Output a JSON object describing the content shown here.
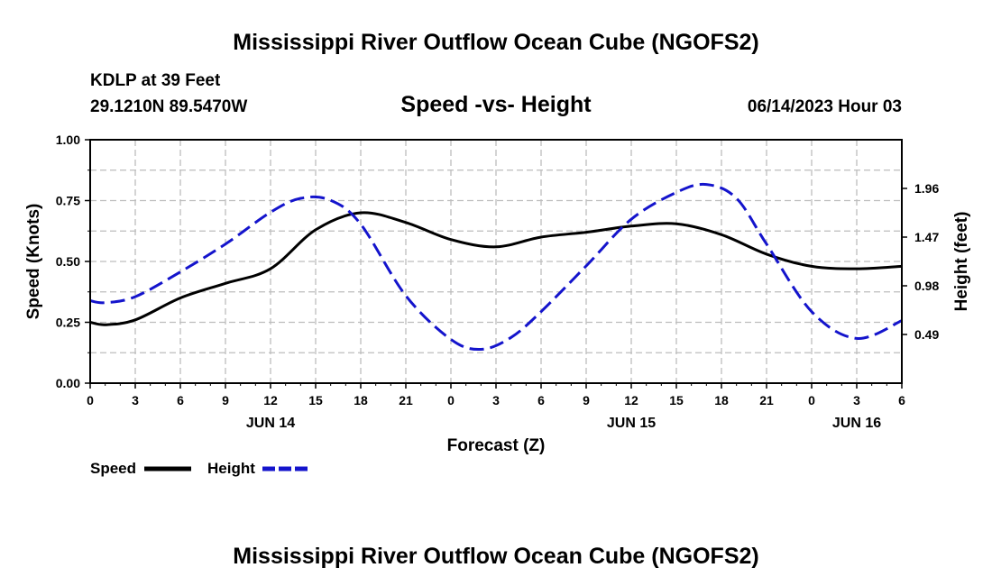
{
  "header": {
    "main_title": "Mississippi River Outflow Ocean Cube (NGOFS2)",
    "station": "KDLP at 39 Feet",
    "location": "29.1210N  89.5470W",
    "subtitle": "Speed -vs- Height",
    "datetime": "06/14/2023 Hour 03"
  },
  "footer": {
    "title": "Mississippi River Outflow Ocean Cube (NGOFS2)"
  },
  "chart_data": {
    "type": "line",
    "title": "Speed -vs- Height",
    "xlabel": "Forecast (Z)",
    "ylabel": "Speed (Knots)",
    "y2label": "Height (feet)",
    "xlim": [
      0,
      54
    ],
    "ylim": [
      0,
      1
    ],
    "y2lim": [
      0,
      2.45
    ],
    "grid": true,
    "x_ticks": [
      {
        "x": 0,
        "label": "0"
      },
      {
        "x": 3,
        "label": "3"
      },
      {
        "x": 6,
        "label": "6"
      },
      {
        "x": 9,
        "label": "9"
      },
      {
        "x": 12,
        "label": "12"
      },
      {
        "x": 15,
        "label": "15"
      },
      {
        "x": 18,
        "label": "18"
      },
      {
        "x": 21,
        "label": "21"
      },
      {
        "x": 24,
        "label": "0"
      },
      {
        "x": 27,
        "label": "3"
      },
      {
        "x": 30,
        "label": "6"
      },
      {
        "x": 33,
        "label": "9"
      },
      {
        "x": 36,
        "label": "12"
      },
      {
        "x": 39,
        "label": "15"
      },
      {
        "x": 42,
        "label": "18"
      },
      {
        "x": 45,
        "label": "21"
      },
      {
        "x": 48,
        "label": "0"
      },
      {
        "x": 51,
        "label": "3"
      },
      {
        "x": 54,
        "label": "6"
      }
    ],
    "date_labels": [
      {
        "x": 12,
        "label": "JUN 14"
      },
      {
        "x": 36,
        "label": "JUN 15"
      },
      {
        "x": 51,
        "label": "JUN 16"
      }
    ],
    "y_ticks": [
      {
        "y": 0.0,
        "label": "0.00"
      },
      {
        "y": 0.25,
        "label": "0.25"
      },
      {
        "y": 0.5,
        "label": "0.50"
      },
      {
        "y": 0.75,
        "label": "0.75"
      },
      {
        "y": 1.0,
        "label": "1.00"
      }
    ],
    "y2_ticks": [
      {
        "y": 0.49,
        "label": "0.49"
      },
      {
        "y": 0.98,
        "label": "0.98"
      },
      {
        "y": 1.47,
        "label": "1.47"
      },
      {
        "y": 1.96,
        "label": "1.96"
      }
    ],
    "series": [
      {
        "name": "Speed",
        "axis": "left",
        "color": "#000000",
        "dash": "solid",
        "x": [
          0,
          1,
          3,
          6,
          9,
          12,
          15,
          18,
          21,
          24,
          27,
          30,
          33,
          36,
          39,
          42,
          45,
          48,
          51,
          54
        ],
        "values": [
          0.25,
          0.24,
          0.26,
          0.35,
          0.41,
          0.47,
          0.63,
          0.7,
          0.66,
          0.59,
          0.56,
          0.6,
          0.62,
          0.645,
          0.655,
          0.61,
          0.53,
          0.48,
          0.47,
          0.48
        ]
      },
      {
        "name": "Height",
        "axis": "right",
        "color": "#1414cc",
        "dash": "dashed",
        "x": [
          0,
          1,
          3,
          6,
          9,
          12,
          14,
          16,
          18,
          21,
          24,
          26,
          28,
          30,
          33,
          36,
          39,
          41,
          43,
          45,
          48,
          51,
          54
        ],
        "values": [
          0.83,
          0.81,
          0.87,
          1.12,
          1.4,
          1.72,
          1.86,
          1.84,
          1.6,
          0.88,
          0.44,
          0.34,
          0.46,
          0.72,
          1.18,
          1.65,
          1.92,
          2.0,
          1.86,
          1.4,
          0.72,
          0.45,
          0.63
        ]
      }
    ],
    "legend": [
      {
        "label": "Speed",
        "color": "#000000",
        "dash": "solid"
      },
      {
        "label": "Height",
        "color": "#1414cc",
        "dash": "dashed"
      }
    ]
  }
}
